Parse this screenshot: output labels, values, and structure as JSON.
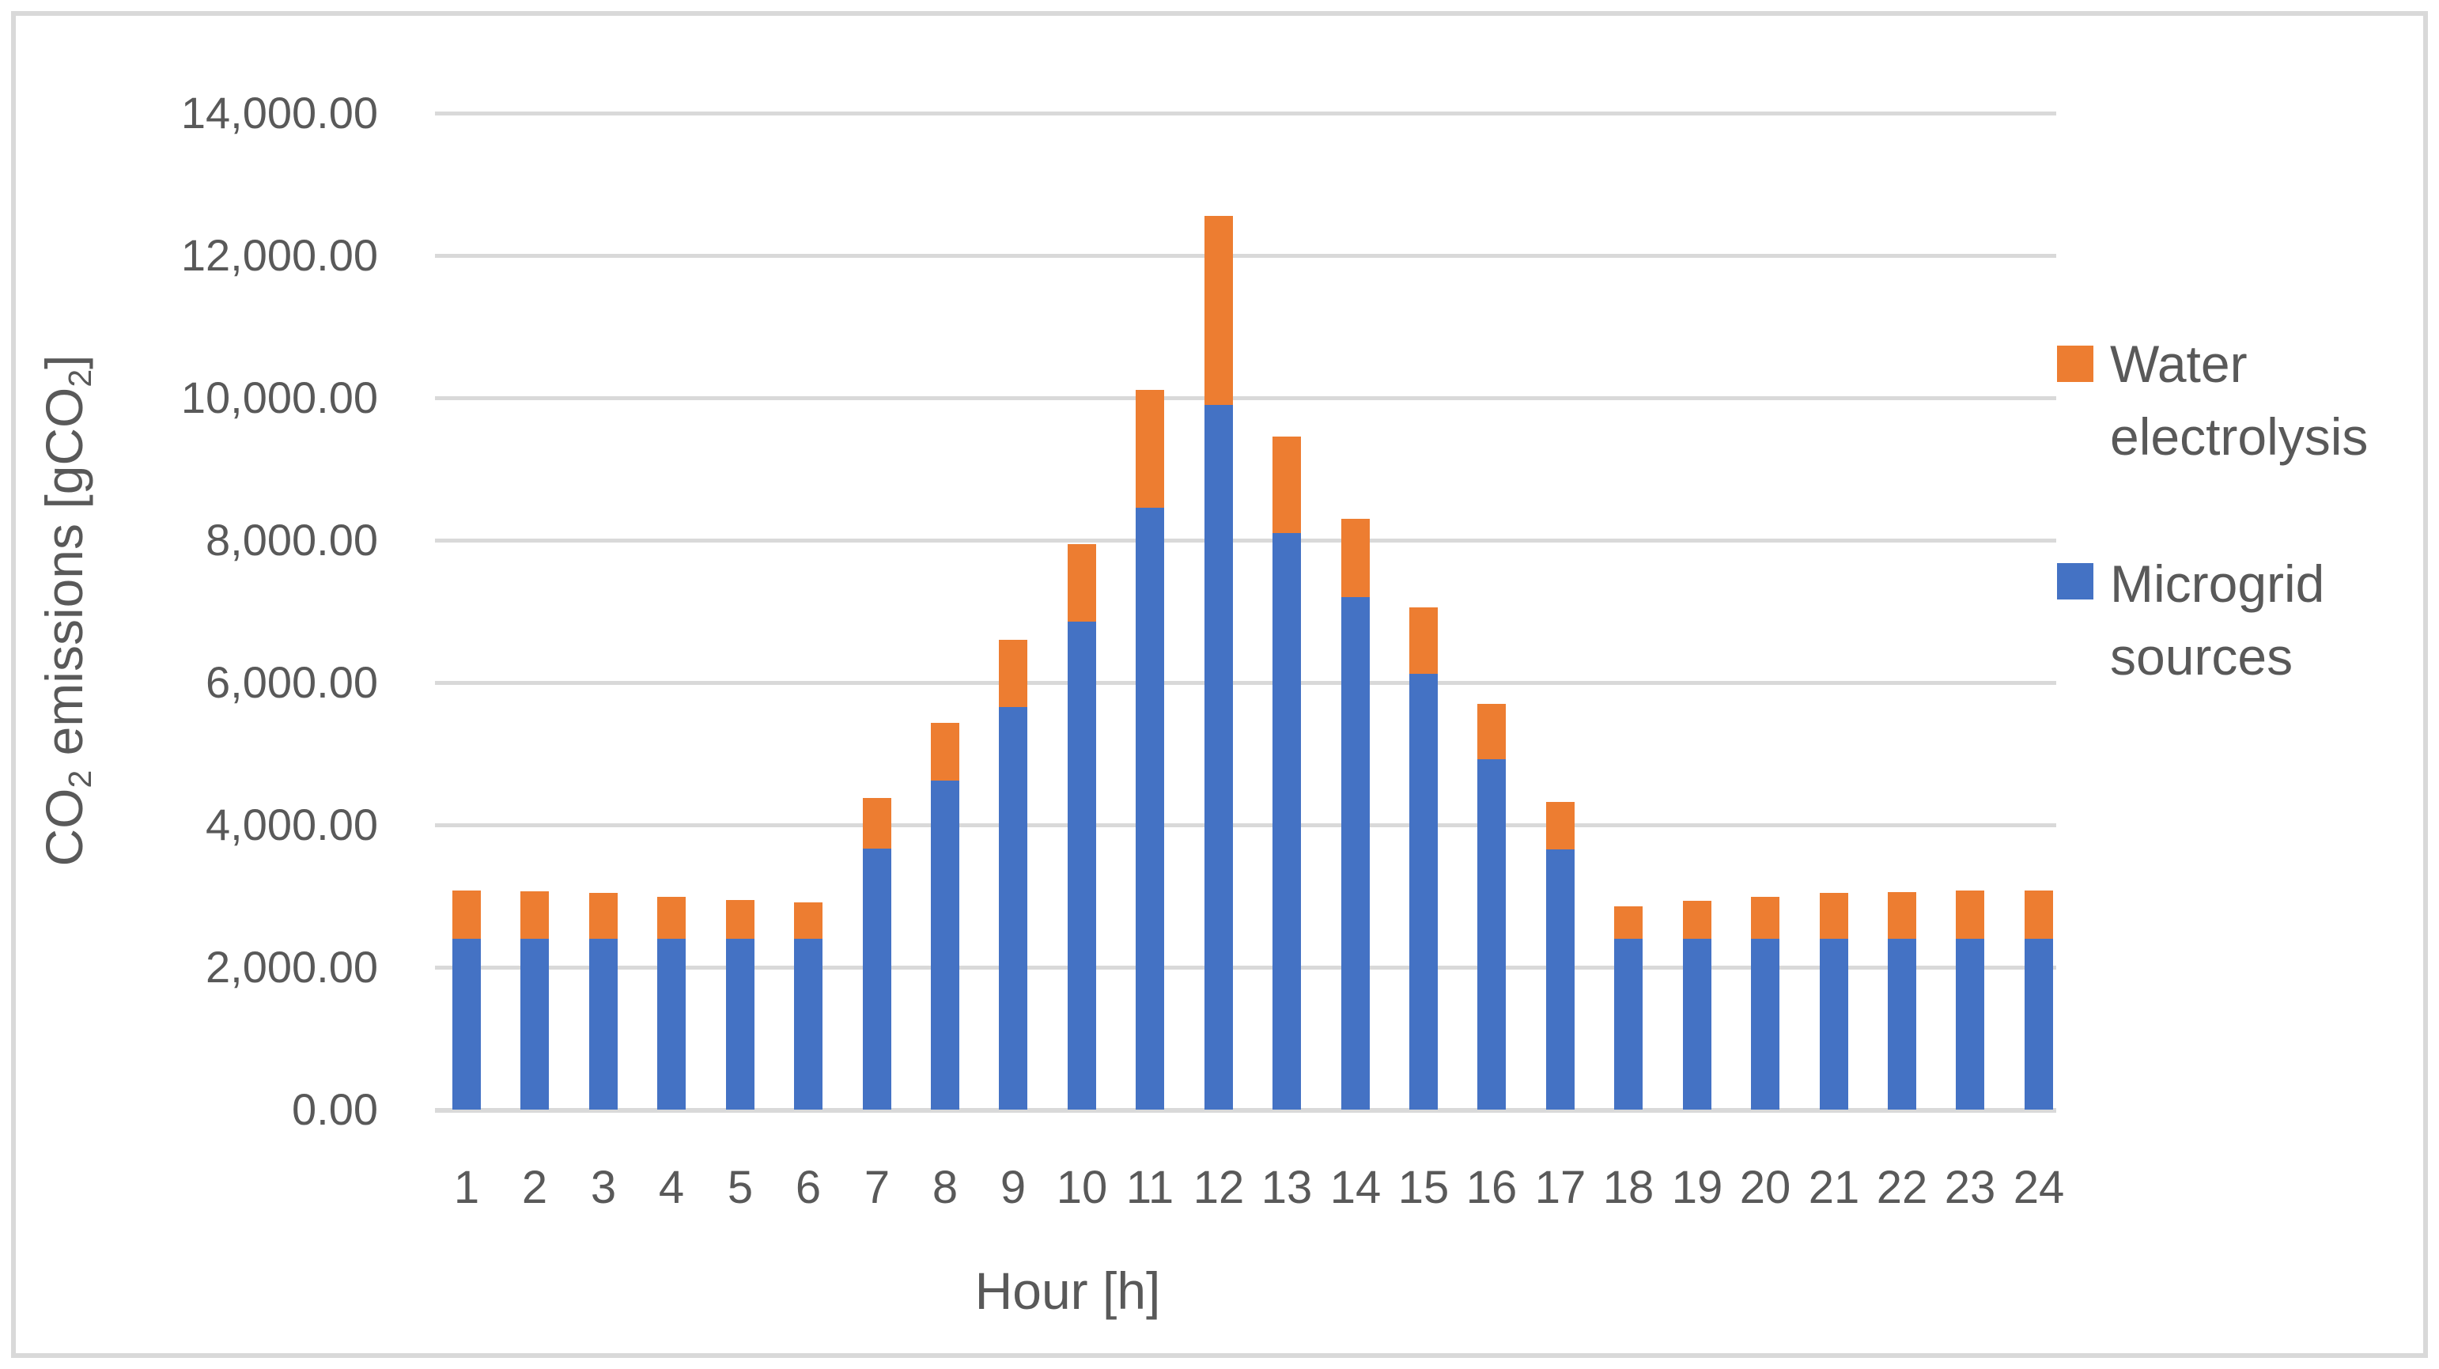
{
  "colors": {
    "microgrid_blue": "#4472C4",
    "electrolysis_orange": "#ED7D31",
    "text_gray": "#595959",
    "gridline_gray": "#D9D9D9",
    "frame_gray": "#D9D9D9",
    "background": "#FFFFFF"
  },
  "chart_data": {
    "type": "bar",
    "stacked": true,
    "title": "",
    "xlabel": "Hour [h]",
    "ylabel": "CO2 emissions [gCO2]",
    "grid": true,
    "legend_position": "right",
    "ylim": [
      0,
      14000
    ],
    "ytick_step": 2000,
    "ytick_labels": [
      "0.00",
      "2,000.00",
      "4,000.00",
      "6,000.00",
      "8,000.00",
      "10,000.00",
      "12,000.00",
      "14,000.00"
    ],
    "categories": [
      "1",
      "2",
      "3",
      "4",
      "5",
      "6",
      "7",
      "8",
      "9",
      "10",
      "11",
      "12",
      "13",
      "14",
      "15",
      "16",
      "17",
      "18",
      "19",
      "20",
      "21",
      "22",
      "23",
      "24"
    ],
    "series": [
      {
        "name": "Microgrid sources",
        "color": "#4472C4",
        "values": [
          2400,
          2400,
          2400,
          2400,
          2400,
          2400,
          3670,
          4620,
          5660,
          6860,
          8450,
          9900,
          8100,
          7200,
          6120,
          4920,
          3660,
          2400,
          2400,
          2400,
          2400,
          2400,
          2400,
          2400
        ]
      },
      {
        "name": "Water electrolysis",
        "color": "#ED7D31",
        "values": [
          675,
          665,
          645,
          590,
          540,
          515,
          710,
          810,
          940,
          1090,
          1650,
          2650,
          1350,
          1100,
          930,
          780,
          670,
          460,
          530,
          590,
          640,
          660,
          675,
          680
        ]
      }
    ],
    "totals": [
      3075,
      3065,
      3045,
      2990,
      2940,
      2915,
      4380,
      5430,
      6600,
      7950,
      10100,
      12550,
      9450,
      8300,
      7050,
      5700,
      4330,
      2860,
      2930,
      2990,
      3040,
      3060,
      3075,
      3080
    ]
  },
  "y_axis_title": {
    "pre": "CO",
    "sub1": "2",
    "mid": " emissions [gCO",
    "sub2": "2",
    "post": "]"
  },
  "legend": {
    "items": [
      {
        "name": "Water electrolysis",
        "swatch_color": "#ED7D31",
        "lines": [
          "Water",
          "electrolysis"
        ]
      },
      {
        "name": "Microgrid sources",
        "swatch_color": "#4472C4",
        "lines": [
          "Microgrid",
          "sources"
        ]
      }
    ]
  }
}
